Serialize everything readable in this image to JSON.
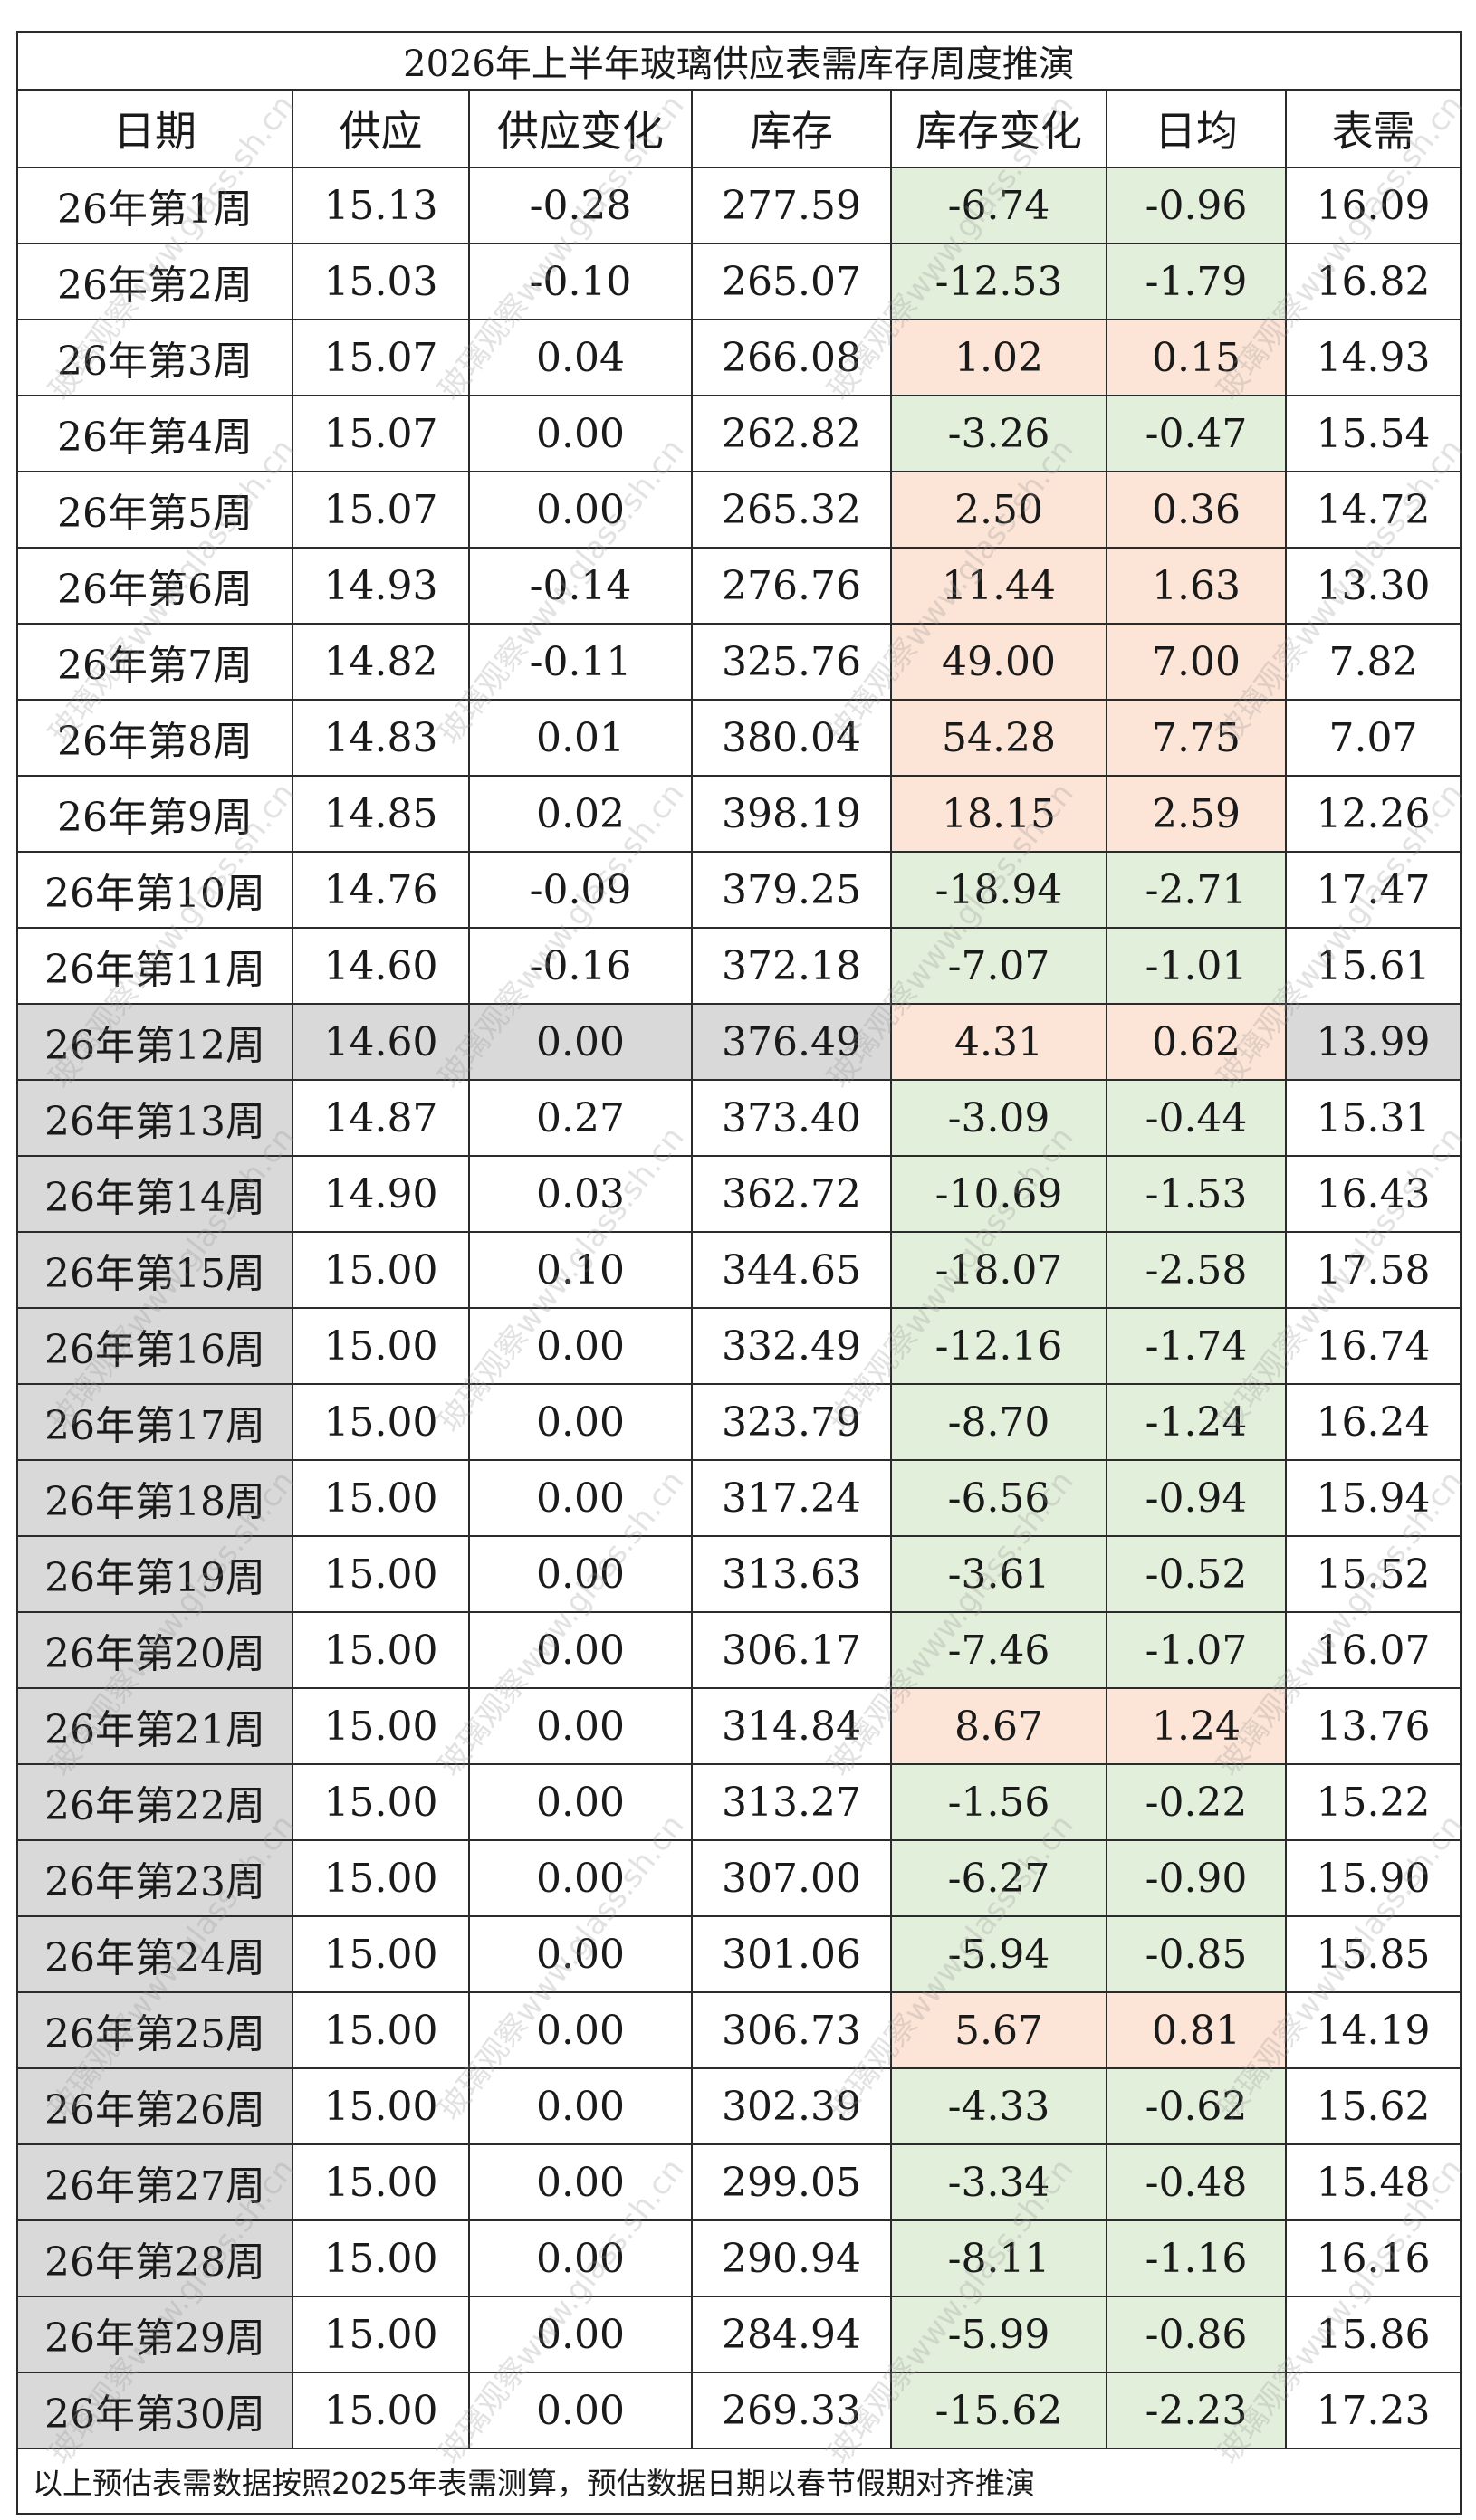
{
  "title": "2026年上半年玻璃供应表需库存周度推演",
  "headers": [
    "日期",
    "供应",
    "供应变化",
    "库存",
    "库存变化",
    "日均",
    "表需"
  ],
  "rows": [
    {
      "date": "26年第1周",
      "supply": "15.13",
      "supply_change": "-0.28",
      "inventory": "277.59",
      "inv_change": "-6.74",
      "daily": "-0.96",
      "demand": "16.09",
      "tone": "green"
    },
    {
      "date": "26年第2周",
      "supply": "15.03",
      "supply_change": "-0.10",
      "inventory": "265.07",
      "inv_change": "-12.53",
      "daily": "-1.79",
      "demand": "16.82",
      "tone": "green"
    },
    {
      "date": "26年第3周",
      "supply": "15.07",
      "supply_change": "0.04",
      "inventory": "266.08",
      "inv_change": "1.02",
      "daily": "0.15",
      "demand": "14.93",
      "tone": "orange"
    },
    {
      "date": "26年第4周",
      "supply": "15.07",
      "supply_change": "0.00",
      "inventory": "262.82",
      "inv_change": "-3.26",
      "daily": "-0.47",
      "demand": "15.54",
      "tone": "green"
    },
    {
      "date": "26年第5周",
      "supply": "15.07",
      "supply_change": "0.00",
      "inventory": "265.32",
      "inv_change": "2.50",
      "daily": "0.36",
      "demand": "14.72",
      "tone": "orange"
    },
    {
      "date": "26年第6周",
      "supply": "14.93",
      "supply_change": "-0.14",
      "inventory": "276.76",
      "inv_change": "11.44",
      "daily": "1.63",
      "demand": "13.30",
      "tone": "orange"
    },
    {
      "date": "26年第7周",
      "supply": "14.82",
      "supply_change": "-0.11",
      "inventory": "325.76",
      "inv_change": "49.00",
      "daily": "7.00",
      "demand": "7.82",
      "tone": "orange"
    },
    {
      "date": "26年第8周",
      "supply": "14.83",
      "supply_change": "0.01",
      "inventory": "380.04",
      "inv_change": "54.28",
      "daily": "7.75",
      "demand": "7.07",
      "tone": "orange"
    },
    {
      "date": "26年第9周",
      "supply": "14.85",
      "supply_change": "0.02",
      "inventory": "398.19",
      "inv_change": "18.15",
      "daily": "2.59",
      "demand": "12.26",
      "tone": "orange"
    },
    {
      "date": "26年第10周",
      "supply": "14.76",
      "supply_change": "-0.09",
      "inventory": "379.25",
      "inv_change": "-18.94",
      "daily": "-2.71",
      "demand": "17.47",
      "tone": "green"
    },
    {
      "date": "26年第11周",
      "supply": "14.60",
      "supply_change": "-0.16",
      "inventory": "372.18",
      "inv_change": "-7.07",
      "daily": "-1.01",
      "demand": "15.61",
      "tone": "green"
    },
    {
      "date": "26年第12周",
      "supply": "14.60",
      "supply_change": "0.00",
      "inventory": "376.49",
      "inv_change": "4.31",
      "daily": "0.62",
      "demand": "13.99",
      "tone": "orange",
      "highlight": true
    },
    {
      "date": "26年第13周",
      "supply": "14.87",
      "supply_change": "0.27",
      "inventory": "373.40",
      "inv_change": "-3.09",
      "daily": "-0.44",
      "demand": "15.31",
      "tone": "green"
    },
    {
      "date": "26年第14周",
      "supply": "14.90",
      "supply_change": "0.03",
      "inventory": "362.72",
      "inv_change": "-10.69",
      "daily": "-1.53",
      "demand": "16.43",
      "tone": "green"
    },
    {
      "date": "26年第15周",
      "supply": "15.00",
      "supply_change": "0.10",
      "inventory": "344.65",
      "inv_change": "-18.07",
      "daily": "-2.58",
      "demand": "17.58",
      "tone": "green"
    },
    {
      "date": "26年第16周",
      "supply": "15.00",
      "supply_change": "0.00",
      "inventory": "332.49",
      "inv_change": "-12.16",
      "daily": "-1.74",
      "demand": "16.74",
      "tone": "green"
    },
    {
      "date": "26年第17周",
      "supply": "15.00",
      "supply_change": "0.00",
      "inventory": "323.79",
      "inv_change": "-8.70",
      "daily": "-1.24",
      "demand": "16.24",
      "tone": "green"
    },
    {
      "date": "26年第18周",
      "supply": "15.00",
      "supply_change": "0.00",
      "inventory": "317.24",
      "inv_change": "-6.56",
      "daily": "-0.94",
      "demand": "15.94",
      "tone": "green"
    },
    {
      "date": "26年第19周",
      "supply": "15.00",
      "supply_change": "0.00",
      "inventory": "313.63",
      "inv_change": "-3.61",
      "daily": "-0.52",
      "demand": "15.52",
      "tone": "green"
    },
    {
      "date": "26年第20周",
      "supply": "15.00",
      "supply_change": "0.00",
      "inventory": "306.17",
      "inv_change": "-7.46",
      "daily": "-1.07",
      "demand": "16.07",
      "tone": "green"
    },
    {
      "date": "26年第21周",
      "supply": "15.00",
      "supply_change": "0.00",
      "inventory": "314.84",
      "inv_change": "8.67",
      "daily": "1.24",
      "demand": "13.76",
      "tone": "orange"
    },
    {
      "date": "26年第22周",
      "supply": "15.00",
      "supply_change": "0.00",
      "inventory": "313.27",
      "inv_change": "-1.56",
      "daily": "-0.22",
      "demand": "15.22",
      "tone": "green"
    },
    {
      "date": "26年第23周",
      "supply": "15.00",
      "supply_change": "0.00",
      "inventory": "307.00",
      "inv_change": "-6.27",
      "daily": "-0.90",
      "demand": "15.90",
      "tone": "green"
    },
    {
      "date": "26年第24周",
      "supply": "15.00",
      "supply_change": "0.00",
      "inventory": "301.06",
      "inv_change": "-5.94",
      "daily": "-0.85",
      "demand": "15.85",
      "tone": "green"
    },
    {
      "date": "26年第25周",
      "supply": "15.00",
      "supply_change": "0.00",
      "inventory": "306.73",
      "inv_change": "5.67",
      "daily": "0.81",
      "demand": "14.19",
      "tone": "orange"
    },
    {
      "date": "26年第26周",
      "supply": "15.00",
      "supply_change": "0.00",
      "inventory": "302.39",
      "inv_change": "-4.33",
      "daily": "-0.62",
      "demand": "15.62",
      "tone": "green"
    },
    {
      "date": "26年第27周",
      "supply": "15.00",
      "supply_change": "0.00",
      "inventory": "299.05",
      "inv_change": "-3.34",
      "daily": "-0.48",
      "demand": "15.48",
      "tone": "green"
    },
    {
      "date": "26年第28周",
      "supply": "15.00",
      "supply_change": "0.00",
      "inventory": "290.94",
      "inv_change": "-8.11",
      "daily": "-1.16",
      "demand": "16.16",
      "tone": "green"
    },
    {
      "date": "26年第29周",
      "supply": "15.00",
      "supply_change": "0.00",
      "inventory": "284.94",
      "inv_change": "-5.99",
      "daily": "-0.86",
      "demand": "15.86",
      "tone": "green"
    },
    {
      "date": "26年第30周",
      "supply": "15.00",
      "supply_change": "0.00",
      "inventory": "269.33",
      "inv_change": "-15.62",
      "daily": "-2.23",
      "demand": "17.23",
      "tone": "green"
    }
  ],
  "note": "以上预估表需数据按照2025年表需测算，预估数据日期以春节假期对齐推演",
  "watermark": [
    "玻璃观察www.glass.sh.cn"
  ],
  "colors": {
    "green": "#e2efda",
    "orange": "#fce4d6",
    "gray": "#d9d9d9",
    "border": "#2b2b2b"
  }
}
